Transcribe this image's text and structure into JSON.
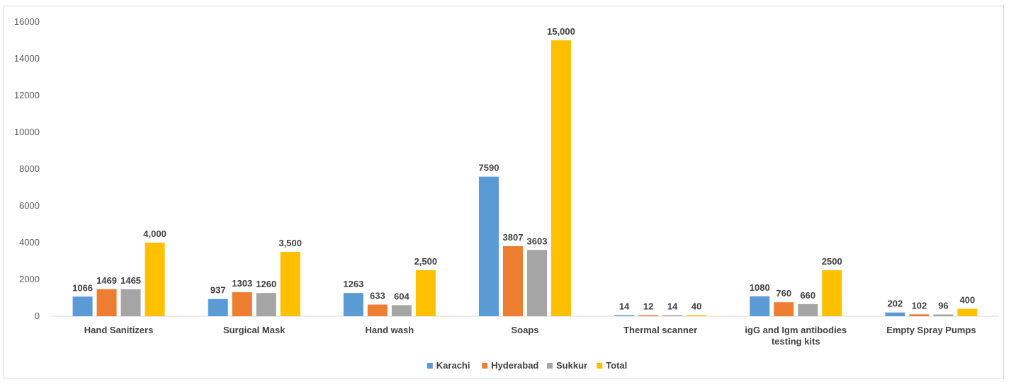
{
  "chart_data": {
    "type": "bar",
    "title": "",
    "xlabel": "",
    "ylabel": "",
    "ylim": [
      0,
      16000
    ],
    "yticks": [
      "0",
      "2000",
      "4000",
      "6000",
      "8000",
      "10000",
      "12000",
      "14000",
      "16000"
    ],
    "grid": false,
    "legend_position": "bottom",
    "categories": [
      [
        "Hand Sanitizers"
      ],
      [
        "Surgical Mask"
      ],
      [
        "Hand wash"
      ],
      [
        "Soaps"
      ],
      [
        "Thermal scanner"
      ],
      [
        "igG and Igm antibodies",
        "testing kits"
      ],
      [
        "Empty Spray Pumps"
      ]
    ],
    "series": [
      {
        "name": "Karachi",
        "color": "#5b9bd5",
        "values": [
          1066,
          937,
          1263,
          7590,
          14,
          1080,
          202
        ],
        "labels": [
          "1066",
          "937",
          "1263",
          "7590",
          "14",
          "1080",
          "202"
        ]
      },
      {
        "name": "Hyderabad",
        "color": "#ed7d31",
        "values": [
          1469,
          1303,
          633,
          3807,
          12,
          760,
          102
        ],
        "labels": [
          "1469",
          "1303",
          "633",
          "3807",
          "12",
          "760",
          "102"
        ]
      },
      {
        "name": "Sukkur",
        "color": "#a5a5a5",
        "values": [
          1465,
          1260,
          604,
          3603,
          14,
          660,
          96
        ],
        "labels": [
          "1465",
          "1260",
          "604",
          "3603",
          "14",
          "660",
          "96"
        ]
      },
      {
        "name": "Total",
        "color": "#ffc000",
        "values": [
          4000,
          3500,
          2500,
          15000,
          40,
          2500,
          400
        ],
        "labels": [
          "4,000",
          "3,500",
          "2,500",
          "15,000",
          "40",
          "2500",
          "400"
        ]
      }
    ]
  }
}
